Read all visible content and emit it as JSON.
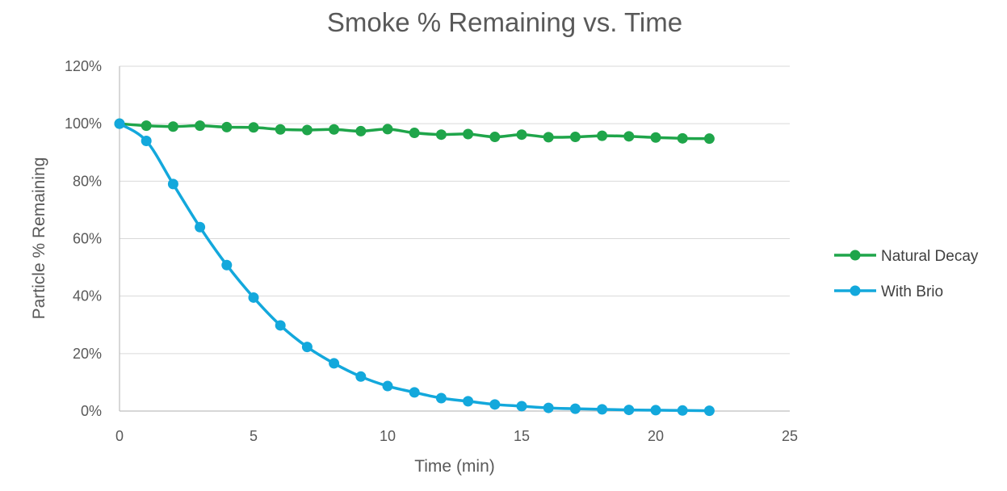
{
  "chart_data": {
    "type": "line",
    "title": "Smoke % Remaining vs. Time",
    "xlabel": "Time (min)",
    "ylabel": "Particle % Remaining",
    "xlim": [
      0,
      25
    ],
    "ylim": [
      0,
      120
    ],
    "x_ticks": [
      0,
      5,
      10,
      15,
      20,
      25
    ],
    "y_ticks": [
      0,
      20,
      40,
      60,
      80,
      100,
      120
    ],
    "y_tick_format": "percent",
    "grid": true,
    "legend_position": "right",
    "x": [
      0,
      1,
      2,
      3,
      4,
      5,
      6,
      7,
      8,
      9,
      10,
      11,
      12,
      13,
      14,
      15,
      16,
      17,
      18,
      19,
      20,
      21,
      22
    ],
    "series": [
      {
        "name": "Natural Decay",
        "color": "#1fa54a",
        "values": [
          100,
          99.3,
          99,
          99.3,
          98.8,
          98.7,
          98,
          97.8,
          98,
          97.4,
          98.1,
          96.8,
          96.2,
          96.4,
          95.4,
          96.2,
          95.3,
          95.4,
          95.8,
          95.6,
          95.2,
          94.9,
          94.8
        ]
      },
      {
        "name": "With Brio",
        "color": "#13a8dc",
        "values": [
          100,
          94,
          79,
          64,
          50.8,
          39.5,
          29.8,
          22.3,
          16.6,
          12,
          8.7,
          6.5,
          4.5,
          3.4,
          2.3,
          1.7,
          1.1,
          0.8,
          0.6,
          0.4,
          0.3,
          0.2,
          0.1
        ]
      }
    ]
  }
}
